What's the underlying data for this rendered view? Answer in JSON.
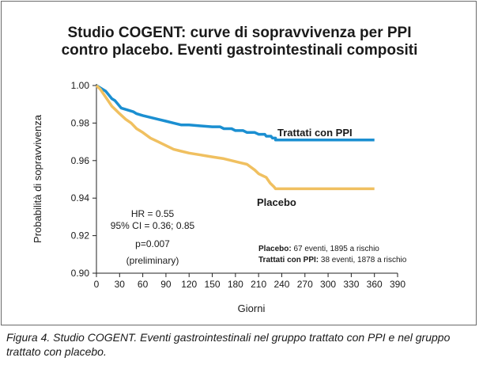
{
  "chart_data": {
    "type": "line",
    "title_line1": "Studio COGENT: curve di sopravvivenza per PPI",
    "title_line2": "contro placebo. Eventi gastrointestinali compositi",
    "xlabel": "Giorni",
    "ylabel": "Probabilità di sopravvivenza",
    "xlim": [
      0,
      390
    ],
    "ylim": [
      0.9,
      1.0
    ],
    "x_ticks": [
      0,
      30,
      60,
      90,
      120,
      150,
      180,
      210,
      240,
      270,
      300,
      330,
      360,
      390
    ],
    "y_ticks": [
      "1.00",
      "0.98",
      "0.96",
      "0.94",
      "0.92",
      "0.90"
    ],
    "grid": false,
    "series": [
      {
        "name": "Trattati con PPI",
        "color": "#1b8fd1",
        "points": [
          [
            0,
            1.0
          ],
          [
            4,
            0.999
          ],
          [
            8,
            0.998
          ],
          [
            12,
            0.997
          ],
          [
            16,
            0.995
          ],
          [
            20,
            0.993
          ],
          [
            24,
            0.992
          ],
          [
            28,
            0.99
          ],
          [
            32,
            0.988
          ],
          [
            40,
            0.987
          ],
          [
            48,
            0.986
          ],
          [
            52,
            0.985
          ],
          [
            60,
            0.984
          ],
          [
            70,
            0.983
          ],
          [
            80,
            0.982
          ],
          [
            90,
            0.981
          ],
          [
            100,
            0.98
          ],
          [
            110,
            0.979
          ],
          [
            120,
            0.979
          ],
          [
            135,
            0.9785
          ],
          [
            150,
            0.978
          ],
          [
            160,
            0.978
          ],
          [
            165,
            0.977
          ],
          [
            175,
            0.977
          ],
          [
            180,
            0.976
          ],
          [
            190,
            0.976
          ],
          [
            195,
            0.975
          ],
          [
            205,
            0.975
          ],
          [
            210,
            0.974
          ],
          [
            218,
            0.974
          ],
          [
            220,
            0.973
          ],
          [
            226,
            0.973
          ],
          [
            228,
            0.972
          ],
          [
            232,
            0.972
          ],
          [
            232,
            0.971
          ],
          [
            360,
            0.971
          ]
        ]
      },
      {
        "name": "Placebo",
        "color": "#f0c060",
        "points": [
          [
            0,
            1.0
          ],
          [
            5,
            0.998
          ],
          [
            10,
            0.995
          ],
          [
            15,
            0.992
          ],
          [
            20,
            0.989
          ],
          [
            25,
            0.987
          ],
          [
            30,
            0.985
          ],
          [
            38,
            0.982
          ],
          [
            45,
            0.98
          ],
          [
            52,
            0.977
          ],
          [
            60,
            0.975
          ],
          [
            70,
            0.972
          ],
          [
            80,
            0.97
          ],
          [
            90,
            0.968
          ],
          [
            100,
            0.966
          ],
          [
            110,
            0.965
          ],
          [
            120,
            0.964
          ],
          [
            135,
            0.963
          ],
          [
            150,
            0.962
          ],
          [
            165,
            0.961
          ],
          [
            175,
            0.96
          ],
          [
            185,
            0.959
          ],
          [
            195,
            0.958
          ],
          [
            205,
            0.955
          ],
          [
            210,
            0.953
          ],
          [
            220,
            0.951
          ],
          [
            225,
            0.948
          ],
          [
            230,
            0.946
          ],
          [
            232,
            0.945
          ],
          [
            360,
            0.945
          ]
        ]
      }
    ],
    "series_labels": [
      {
        "text": "Trattati con PPI",
        "series": 0
      },
      {
        "text": "Placebo",
        "series": 1
      }
    ],
    "stats": {
      "hr": "HR = 0.55",
      "ci": "95% CI = 0.36; 0.85",
      "p": "p=0.007",
      "prelim": "(preliminary)"
    },
    "at_risk": [
      {
        "label": "Placebo:",
        "text": " 67 eventi, 1895 a rischio"
      },
      {
        "label": "Trattati con PPI:",
        "text": " 38 eventi, 1878 a rischio"
      }
    ]
  },
  "caption": "Figura 4. Studio COGENT. Eventi gastrointestinali nel gruppo trattato con PPI e nel gruppo trattato con placebo."
}
